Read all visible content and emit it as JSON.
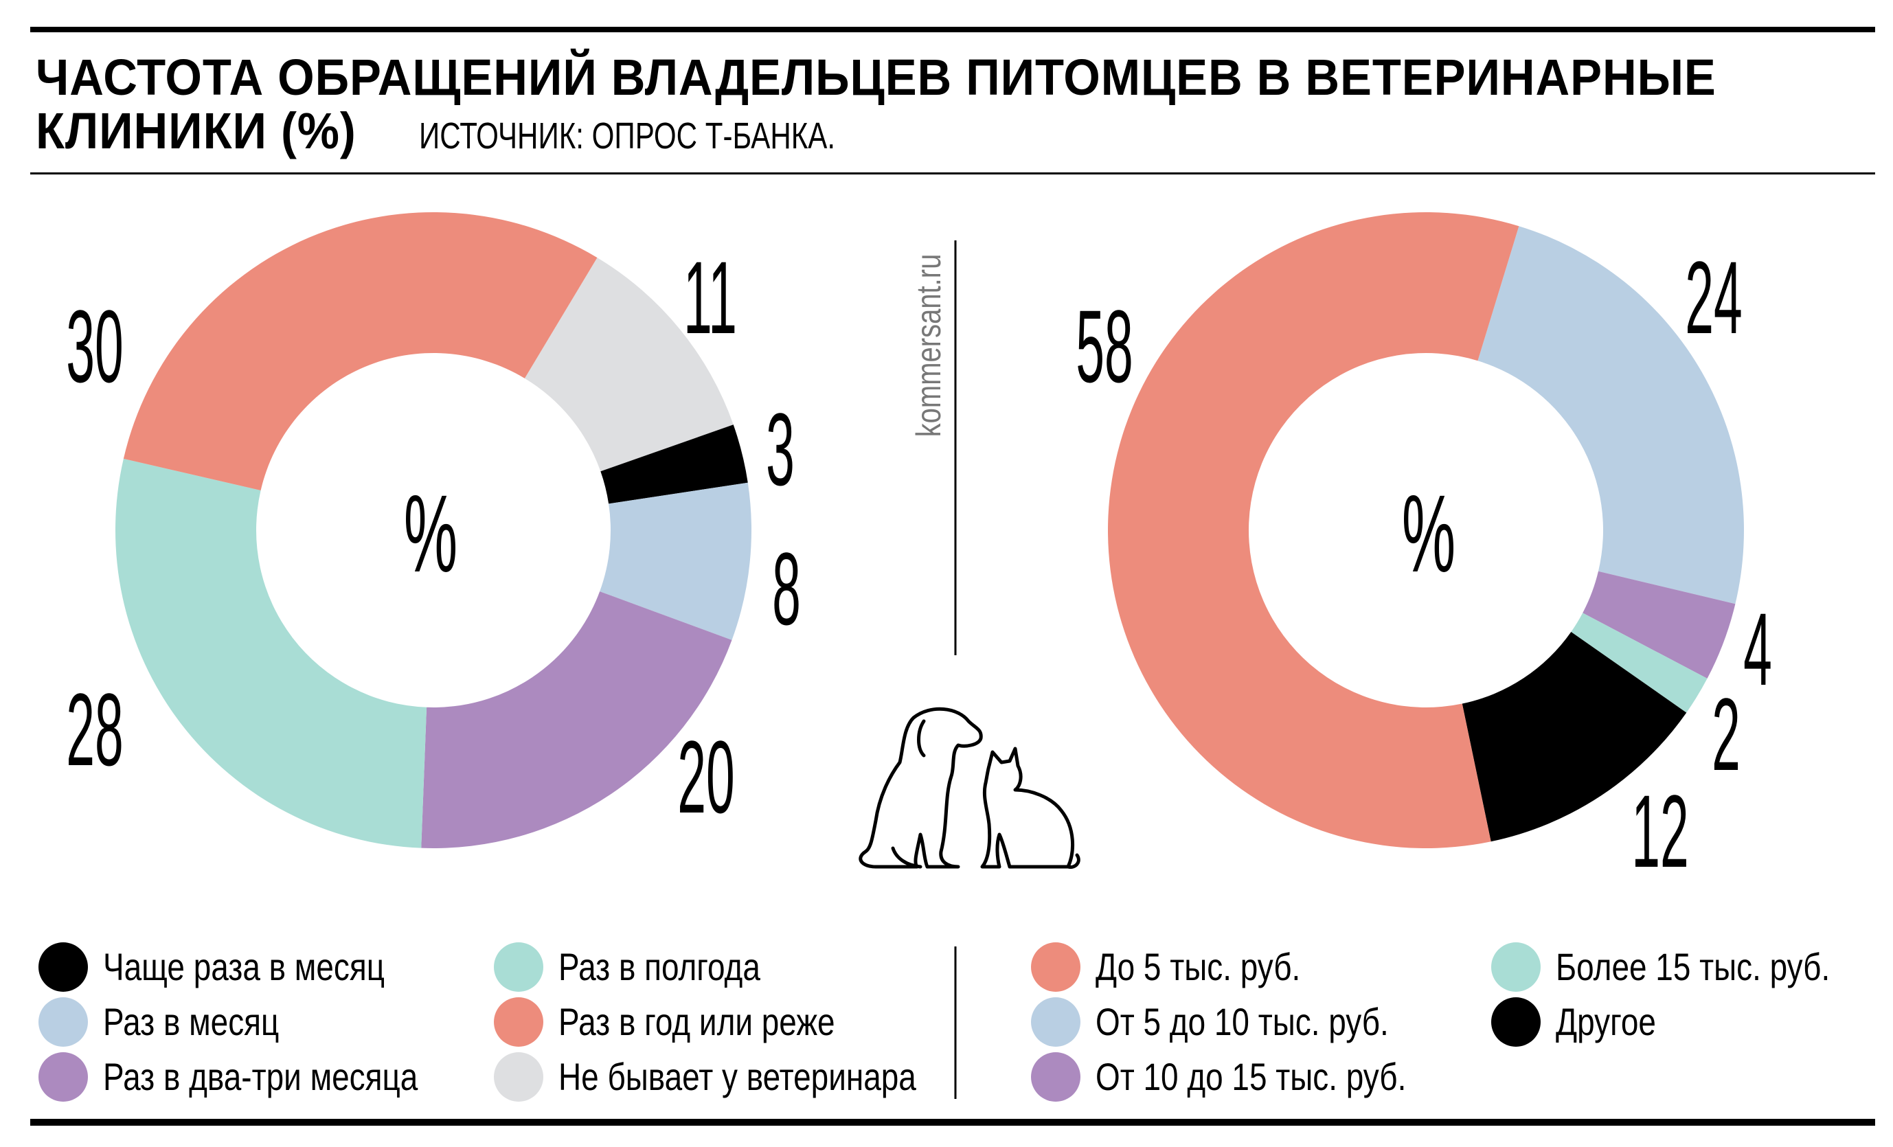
{
  "header": {
    "title_line1": "ЧАСТОТА ОБРАЩЕНИЙ ВЛАДЕЛЬЦЕВ ПИТОМЦЕВ В ВЕТЕРИНАРНЫЕ",
    "title_line2": "КЛИНИКИ (%)",
    "source": "ИСТОЧНИК: ОПРОС Т-БАНКА."
  },
  "watermark": "kommersant.ru",
  "icons": {
    "pets": "dog-and-cat-outline-icon"
  },
  "colors": {
    "black": "#000000",
    "blue": "#B9CFE3",
    "purple": "#AC8ABF",
    "teal": "#A9DDD5",
    "salmon": "#ED8C7C",
    "grey": "#DEDFE1"
  },
  "chart_data": [
    {
      "type": "pie",
      "donut": true,
      "center_label": "%",
      "slices": [
        {
          "name": "Не бывает у ветеринара",
          "value": 11,
          "label": "11",
          "color": "#DEDFE1"
        },
        {
          "name": "Чаще раза в месяц",
          "value": 3,
          "label": "3",
          "color": "#000000"
        },
        {
          "name": "Раз в месяц",
          "value": 8,
          "label": "8",
          "color": "#B9CFE3"
        },
        {
          "name": "Раз в два-три месяца",
          "value": 20,
          "label": "20",
          "color": "#AC8ABF"
        },
        {
          "name": "Раз в полгода",
          "value": 28,
          "label": "28",
          "color": "#A9DDD5"
        },
        {
          "name": "Раз в год или реже",
          "value": 30,
          "label": "30",
          "color": "#ED8C7C"
        }
      ],
      "legend": [
        {
          "label": "Чаще раза в месяц",
          "color": "#000000"
        },
        {
          "label": "Раз в месяц",
          "color": "#B9CFE3"
        },
        {
          "label": "Раз в два-три месяца",
          "color": "#AC8ABF"
        },
        {
          "label": "Раз в полгода",
          "color": "#A9DDD5"
        },
        {
          "label": "Раз в год или реже",
          "color": "#ED8C7C"
        },
        {
          "label": "Не бывает у ветеринара",
          "color": "#DEDFE1"
        }
      ],
      "legend_placement": "bottom"
    },
    {
      "type": "pie",
      "donut": true,
      "center_label": "%",
      "slices": [
        {
          "name": "От 5 до 10 тыс. руб.",
          "value": 24,
          "label": "24",
          "color": "#B9CFE3"
        },
        {
          "name": "От 10 до 15 тыс. руб.",
          "value": 4,
          "label": "4",
          "color": "#AC8ABF"
        },
        {
          "name": "Более 15 тыс. руб.",
          "value": 2,
          "label": "2",
          "color": "#A9DDD5"
        },
        {
          "name": "Другое",
          "value": 12,
          "label": "12",
          "color": "#000000"
        },
        {
          "name": "До 5 тыс. руб.",
          "value": 58,
          "label": "58",
          "color": "#ED8C7C"
        }
      ],
      "legend": [
        {
          "label": "До 5 тыс. руб.",
          "color": "#ED8C7C"
        },
        {
          "label": "От 5 до 10 тыс. руб.",
          "color": "#B9CFE3"
        },
        {
          "label": "От 10 до 15 тыс. руб.",
          "color": "#AC8ABF"
        },
        {
          "label": "Более 15 тыс. руб.",
          "color": "#A9DDD5"
        },
        {
          "label": "Другое",
          "color": "#000000"
        }
      ],
      "legend_placement": "bottom"
    }
  ]
}
